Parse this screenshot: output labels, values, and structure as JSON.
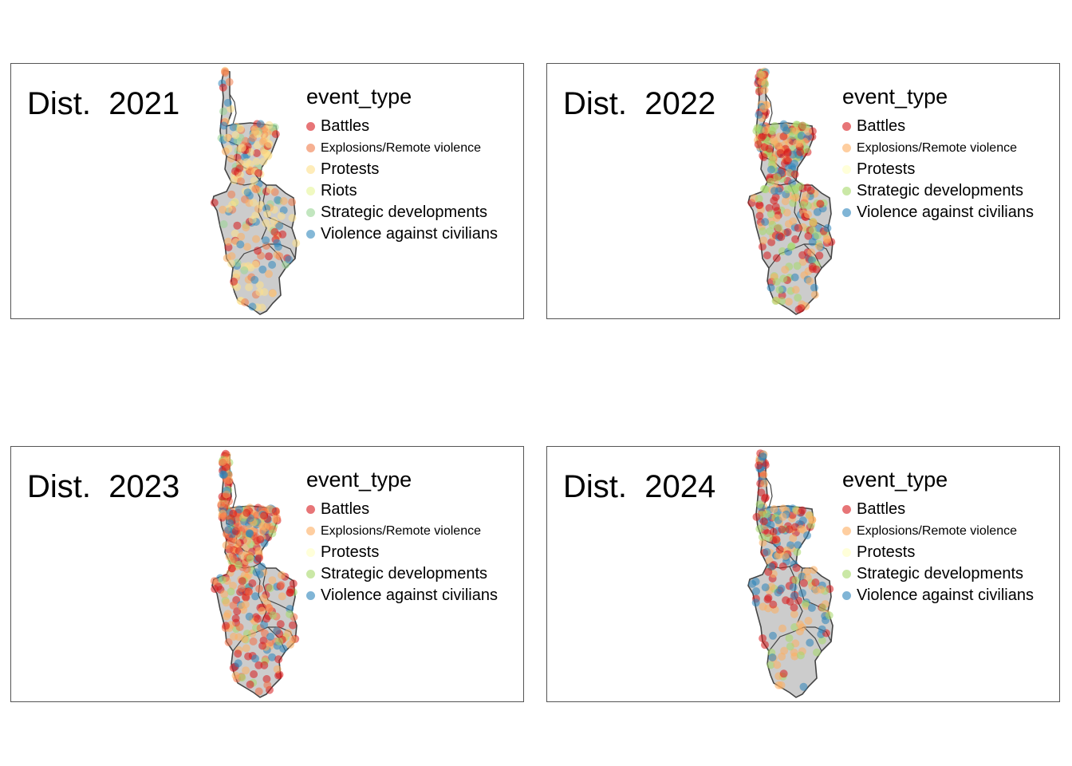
{
  "panels": [
    {
      "title": "Dist.  2021",
      "legend": {
        "title": "event_type",
        "items": [
          {
            "label": "Battles",
            "color": "#d7191c",
            "small": false
          },
          {
            "label": "Explosions/Remote violence",
            "color": "#f07c4a",
            "small": true
          },
          {
            "label": "Protests",
            "color": "#fee08b",
            "small": false
          },
          {
            "label": "Riots",
            "color": "#e6f598",
            "small": false
          },
          {
            "label": "Strategic developments",
            "color": "#99d594",
            "small": false
          },
          {
            "label": "Violence against civilians",
            "color": "#3288bd",
            "small": false
          }
        ]
      }
    },
    {
      "title": "Dist.  2022",
      "legend": {
        "title": "event_type",
        "items": [
          {
            "label": "Battles",
            "color": "#d7191c",
            "small": false
          },
          {
            "label": "Explosions/Remote violence",
            "color": "#fdae61",
            "small": true
          },
          {
            "label": "Protests",
            "color": "#ffffbf",
            "small": false
          },
          {
            "label": "Strategic developments",
            "color": "#a6d96a",
            "small": false
          },
          {
            "label": "Violence against civilians",
            "color": "#2b83ba",
            "small": false
          }
        ]
      }
    },
    {
      "title": "Dist.  2023",
      "legend": {
        "title": "event_type",
        "items": [
          {
            "label": "Battles",
            "color": "#d7191c",
            "small": false
          },
          {
            "label": "Explosions/Remote violence",
            "color": "#fdae61",
            "small": true
          },
          {
            "label": "Protests",
            "color": "#ffffbf",
            "small": false
          },
          {
            "label": "Strategic developments",
            "color": "#a6d96a",
            "small": false
          },
          {
            "label": "Violence against civilians",
            "color": "#2b83ba",
            "small": false
          }
        ]
      }
    },
    {
      "title": "Dist.  2024",
      "legend": {
        "title": "event_type",
        "items": [
          {
            "label": "Battles",
            "color": "#d7191c",
            "small": false
          },
          {
            "label": "Explosions/Remote violence",
            "color": "#fdae61",
            "small": true
          },
          {
            "label": "Protests",
            "color": "#ffffbf",
            "small": false
          },
          {
            "label": "Strategic developments",
            "color": "#a6d96a",
            "small": false
          },
          {
            "label": "Violence against civilians",
            "color": "#2b83ba",
            "small": false
          }
        ]
      }
    }
  ],
  "colors": {
    "region_fill": "#cccccc",
    "region_stroke": "#444444",
    "panel_border": "#555555"
  }
}
